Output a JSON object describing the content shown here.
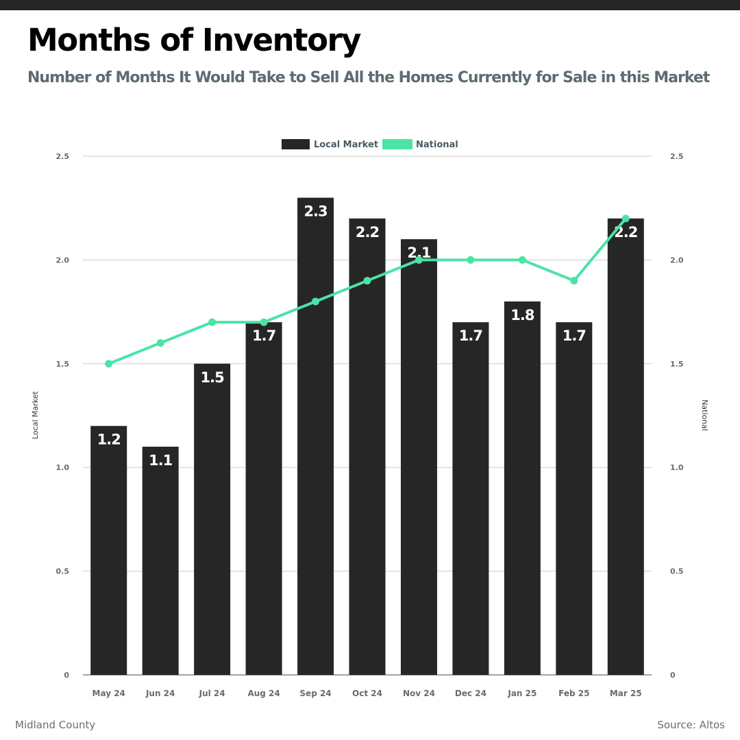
{
  "header": {
    "title": "Months of Inventory",
    "subtitle": "Number of Months It Would Take to Sell All the Homes Currently for Sale in this Market"
  },
  "footer": {
    "location": "Midland County",
    "source": "Source: Altos"
  },
  "colors": {
    "bar": "#262626",
    "line": "#4be3a6",
    "subtitle": "#5c6b73",
    "grid": "#cccccc",
    "tick_text": "#6b6b6b"
  },
  "chart_data": {
    "type": "bar",
    "categories": [
      "May 24",
      "Jun 24",
      "Jul 24",
      "Aug 24",
      "Sep 24",
      "Oct 24",
      "Nov 24",
      "Dec 24",
      "Jan 25",
      "Feb 25",
      "Mar 25"
    ],
    "series": [
      {
        "name": "Local Market",
        "type": "bar",
        "axis": "left",
        "values": [
          1.2,
          1.1,
          1.5,
          1.7,
          2.3,
          2.2,
          2.1,
          1.7,
          1.8,
          1.7,
          2.2
        ],
        "data_labels": [
          "1.2",
          "1.1",
          "1.5",
          "1.7",
          "2.3",
          "2.2",
          "2.1",
          "1.7",
          "1.8",
          "1.7",
          "2.2"
        ]
      },
      {
        "name": "National",
        "type": "line",
        "axis": "right",
        "values": [
          1.5,
          1.6,
          1.7,
          1.7,
          1.8,
          1.9,
          2.0,
          2.0,
          2.0,
          1.9,
          2.2
        ]
      }
    ],
    "ylabel_left": "Local Market",
    "ylabel_right": "National",
    "ylim": [
      0,
      2.5
    ],
    "yticks": [
      0,
      0.5,
      1.0,
      1.5,
      2.0,
      2.5
    ],
    "ytick_labels": [
      "0",
      "0.5",
      "1.0",
      "1.5",
      "2.0",
      "2.5"
    ],
    "grid": true,
    "legend_position": "top-center"
  }
}
